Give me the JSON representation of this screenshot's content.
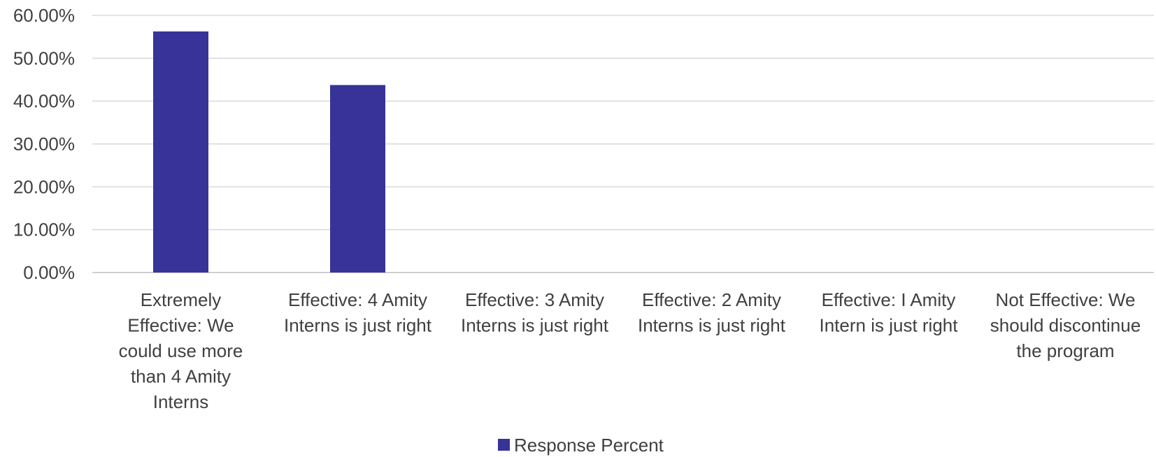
{
  "chart_data": {
    "type": "bar",
    "categories": [
      "Extremely Effective: We could use more than 4 Amity Interns",
      "Effective:  4 Amity Interns is just right",
      "Effective:  3 Amity Interns is just right",
      "Effective:  2 Amity Interns is just right",
      "Effective:  1 Amity Intern is just right",
      "Not Effective:  We should discontinue the program"
    ],
    "category_label_lines": [
      [
        "Extremely",
        "Effective: We",
        "could use more",
        "than 4 Amity",
        "Interns"
      ],
      [
        "Effective:  4 Amity",
        "Interns is just right"
      ],
      [
        "Effective:  3 Amity",
        "Interns is just right"
      ],
      [
        "Effective:  2 Amity",
        "Interns is just right"
      ],
      [
        "Effective:  I Amity",
        "Intern is just right"
      ],
      [
        "Not Effective:  We",
        "should discontinue",
        "the program"
      ]
    ],
    "series": [
      {
        "name": "Response Percent",
        "values": [
          0.5625,
          0.4375,
          0,
          0,
          0,
          0
        ],
        "color": "#383399"
      }
    ],
    "ylim": [
      0,
      0.6
    ],
    "yticks": [
      "0.00%",
      "10.00%",
      "20.00%",
      "30.00%",
      "40.00%",
      "50.00%",
      "60.00%"
    ],
    "ytick_values": [
      0,
      0.1,
      0.2,
      0.3,
      0.4,
      0.5,
      0.6
    ],
    "grid": true,
    "legend_position": "bottom",
    "title": "",
    "xlabel": "",
    "ylabel": ""
  }
}
